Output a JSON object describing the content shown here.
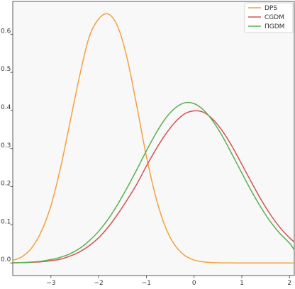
{
  "chart_data": {
    "type": "line",
    "title": "",
    "xlabel": "",
    "ylabel": "",
    "xlim": [
      -3.8,
      2.1
    ],
    "ylim": [
      -0.033,
      0.686
    ],
    "xticks": [
      -3,
      -2,
      -1,
      0,
      1,
      2
    ],
    "yticks": [
      0.0,
      0.1,
      0.2,
      0.3,
      0.4,
      0.5,
      0.6
    ],
    "xtick_labels": [
      "−3",
      "−2",
      "−1",
      "0",
      "1",
      "2"
    ],
    "ytick_labels": [
      "0.0",
      "0.1",
      "0.2",
      "0.3",
      "0.4",
      "0.5",
      "0.6"
    ],
    "grid": false,
    "legend": "top-right",
    "background": "#f8f8f8",
    "series": [
      {
        "name": "DPS",
        "color": "#f5a03c",
        "x": [
          -3.8,
          -3.6,
          -3.4,
          -3.2,
          -3.0,
          -2.8,
          -2.6,
          -2.4,
          -2.2,
          -2.0,
          -1.8,
          -1.6,
          -1.4,
          -1.2,
          -1.0,
          -0.8,
          -0.6,
          -0.4,
          -0.2,
          0.0,
          0.2,
          0.4,
          0.6,
          0.8,
          1.0,
          1.2,
          1.4,
          1.6,
          1.8,
          2.0,
          2.1
        ],
        "y": [
          0.0065,
          0.017,
          0.04,
          0.083,
          0.15,
          0.249,
          0.369,
          0.49,
          0.592,
          0.64,
          0.653,
          0.62,
          0.535,
          0.411,
          0.28,
          0.172,
          0.094,
          0.046,
          0.02,
          0.0078,
          0.0027,
          0.0008,
          0.0002,
          0.0001,
          0.0,
          0.0,
          0.0,
          0.0,
          0.0,
          0.0,
          0.0
        ]
      },
      {
        "name": "CGDM",
        "color": "#d65050",
        "x": [
          -3.8,
          -3.6,
          -3.4,
          -3.2,
          -3.0,
          -2.8,
          -2.6,
          -2.4,
          -2.2,
          -2.0,
          -1.8,
          -1.6,
          -1.4,
          -1.2,
          -1.0,
          -0.8,
          -0.6,
          -0.4,
          -0.2,
          0.0,
          0.2,
          0.4,
          0.6,
          0.8,
          1.0,
          1.2,
          1.4,
          1.6,
          1.8,
          2.0,
          2.1
        ],
        "y": [
          0.0004,
          0.0008,
          0.0016,
          0.0032,
          0.006,
          0.01,
          0.018,
          0.029,
          0.045,
          0.066,
          0.094,
          0.128,
          0.166,
          0.207,
          0.254,
          0.298,
          0.337,
          0.369,
          0.391,
          0.399,
          0.395,
          0.376,
          0.345,
          0.305,
          0.259,
          0.212,
          0.167,
          0.127,
          0.093,
          0.066,
          0.055
        ]
      },
      {
        "name": "ΠGDM",
        "color": "#5aaf50",
        "x": [
          -3.8,
          -3.6,
          -3.4,
          -3.2,
          -3.0,
          -2.8,
          -2.6,
          -2.4,
          -2.2,
          -2.0,
          -1.8,
          -1.6,
          -1.4,
          -1.2,
          -1.0,
          -0.8,
          -0.6,
          -0.4,
          -0.2,
          0.0,
          0.2,
          0.4,
          0.6,
          0.8,
          1.0,
          1.2,
          1.4,
          1.6,
          1.8,
          2.0,
          2.1
        ],
        "y": [
          0.0006,
          0.0012,
          0.0024,
          0.0046,
          0.009,
          0.015,
          0.024,
          0.038,
          0.058,
          0.083,
          0.115,
          0.154,
          0.198,
          0.245,
          0.294,
          0.34,
          0.379,
          0.406,
          0.42,
          0.418,
          0.401,
          0.371,
          0.331,
          0.284,
          0.236,
          0.189,
          0.146,
          0.108,
          0.077,
          0.052,
          0.034
        ]
      }
    ]
  }
}
